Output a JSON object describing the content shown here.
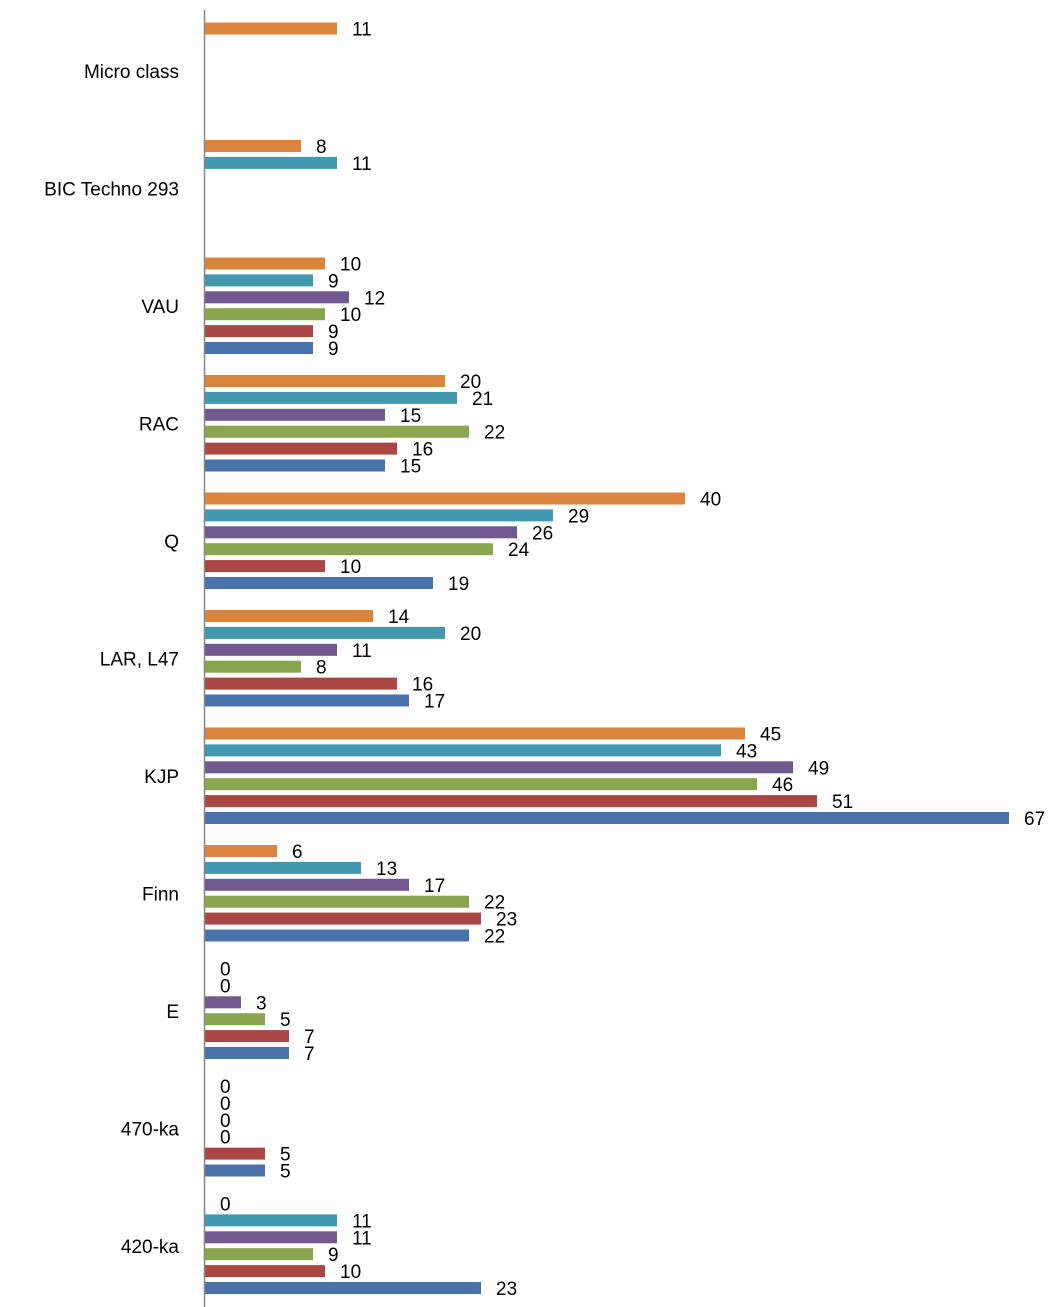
{
  "chart_data": {
    "type": "bar",
    "orientation": "horizontal",
    "categories": [
      "420-ka",
      "470-ka",
      "E",
      "Finn",
      "KJP",
      "LAR, L47",
      "Q",
      "RAC",
      "VAU",
      "BIC Techno 293",
      "Micro  class"
    ],
    "series": [
      {
        "color": "#4a72aa",
        "values": [
          23,
          5,
          7,
          22,
          67,
          17,
          19,
          15,
          9,
          null,
          null
        ]
      },
      {
        "color": "#aa4744",
        "values": [
          10,
          5,
          7,
          23,
          51,
          16,
          10,
          16,
          9,
          null,
          null
        ]
      },
      {
        "color": "#89a54e",
        "values": [
          9,
          0,
          5,
          22,
          46,
          8,
          24,
          22,
          10,
          null,
          null
        ]
      },
      {
        "color": "#71588f",
        "values": [
          11,
          0,
          3,
          17,
          49,
          11,
          26,
          15,
          12,
          null,
          null
        ]
      },
      {
        "color": "#4198af",
        "values": [
          11,
          0,
          0,
          13,
          43,
          20,
          29,
          21,
          9,
          11,
          null
        ]
      },
      {
        "color": "#db843d",
        "values": [
          0,
          0,
          0,
          6,
          45,
          14,
          40,
          20,
          10,
          8,
          11
        ]
      }
    ],
    "data_labels": "outside-end",
    "title": "",
    "xlabel": "",
    "ylabel": "",
    "xlim": [
      0,
      67
    ],
    "grid": false,
    "legend": "none"
  }
}
